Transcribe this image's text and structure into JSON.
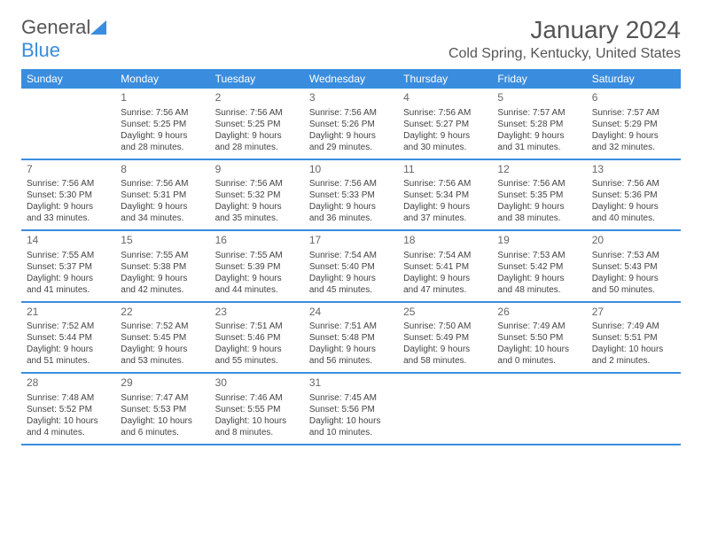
{
  "brand": {
    "part1": "General",
    "part2": "Blue"
  },
  "title": "January 2024",
  "location": "Cold Spring, Kentucky, United States",
  "colors": {
    "accent": "#3a8dde",
    "text": "#444444",
    "title": "#555555",
    "bg": "#ffffff"
  },
  "fonts": {
    "title_size": 28,
    "location_size": 16,
    "header_size": 12,
    "cell_size": 10
  },
  "day_headers": [
    "Sunday",
    "Monday",
    "Tuesday",
    "Wednesday",
    "Thursday",
    "Friday",
    "Saturday"
  ],
  "weeks": [
    [
      null,
      {
        "n": "1",
        "sr": "Sunrise: 7:56 AM",
        "ss": "Sunset: 5:25 PM",
        "d1": "Daylight: 9 hours",
        "d2": "and 28 minutes."
      },
      {
        "n": "2",
        "sr": "Sunrise: 7:56 AM",
        "ss": "Sunset: 5:25 PM",
        "d1": "Daylight: 9 hours",
        "d2": "and 28 minutes."
      },
      {
        "n": "3",
        "sr": "Sunrise: 7:56 AM",
        "ss": "Sunset: 5:26 PM",
        "d1": "Daylight: 9 hours",
        "d2": "and 29 minutes."
      },
      {
        "n": "4",
        "sr": "Sunrise: 7:56 AM",
        "ss": "Sunset: 5:27 PM",
        "d1": "Daylight: 9 hours",
        "d2": "and 30 minutes."
      },
      {
        "n": "5",
        "sr": "Sunrise: 7:57 AM",
        "ss": "Sunset: 5:28 PM",
        "d1": "Daylight: 9 hours",
        "d2": "and 31 minutes."
      },
      {
        "n": "6",
        "sr": "Sunrise: 7:57 AM",
        "ss": "Sunset: 5:29 PM",
        "d1": "Daylight: 9 hours",
        "d2": "and 32 minutes."
      }
    ],
    [
      {
        "n": "7",
        "sr": "Sunrise: 7:56 AM",
        "ss": "Sunset: 5:30 PM",
        "d1": "Daylight: 9 hours",
        "d2": "and 33 minutes."
      },
      {
        "n": "8",
        "sr": "Sunrise: 7:56 AM",
        "ss": "Sunset: 5:31 PM",
        "d1": "Daylight: 9 hours",
        "d2": "and 34 minutes."
      },
      {
        "n": "9",
        "sr": "Sunrise: 7:56 AM",
        "ss": "Sunset: 5:32 PM",
        "d1": "Daylight: 9 hours",
        "d2": "and 35 minutes."
      },
      {
        "n": "10",
        "sr": "Sunrise: 7:56 AM",
        "ss": "Sunset: 5:33 PM",
        "d1": "Daylight: 9 hours",
        "d2": "and 36 minutes."
      },
      {
        "n": "11",
        "sr": "Sunrise: 7:56 AM",
        "ss": "Sunset: 5:34 PM",
        "d1": "Daylight: 9 hours",
        "d2": "and 37 minutes."
      },
      {
        "n": "12",
        "sr": "Sunrise: 7:56 AM",
        "ss": "Sunset: 5:35 PM",
        "d1": "Daylight: 9 hours",
        "d2": "and 38 minutes."
      },
      {
        "n": "13",
        "sr": "Sunrise: 7:56 AM",
        "ss": "Sunset: 5:36 PM",
        "d1": "Daylight: 9 hours",
        "d2": "and 40 minutes."
      }
    ],
    [
      {
        "n": "14",
        "sr": "Sunrise: 7:55 AM",
        "ss": "Sunset: 5:37 PM",
        "d1": "Daylight: 9 hours",
        "d2": "and 41 minutes."
      },
      {
        "n": "15",
        "sr": "Sunrise: 7:55 AM",
        "ss": "Sunset: 5:38 PM",
        "d1": "Daylight: 9 hours",
        "d2": "and 42 minutes."
      },
      {
        "n": "16",
        "sr": "Sunrise: 7:55 AM",
        "ss": "Sunset: 5:39 PM",
        "d1": "Daylight: 9 hours",
        "d2": "and 44 minutes."
      },
      {
        "n": "17",
        "sr": "Sunrise: 7:54 AM",
        "ss": "Sunset: 5:40 PM",
        "d1": "Daylight: 9 hours",
        "d2": "and 45 minutes."
      },
      {
        "n": "18",
        "sr": "Sunrise: 7:54 AM",
        "ss": "Sunset: 5:41 PM",
        "d1": "Daylight: 9 hours",
        "d2": "and 47 minutes."
      },
      {
        "n": "19",
        "sr": "Sunrise: 7:53 AM",
        "ss": "Sunset: 5:42 PM",
        "d1": "Daylight: 9 hours",
        "d2": "and 48 minutes."
      },
      {
        "n": "20",
        "sr": "Sunrise: 7:53 AM",
        "ss": "Sunset: 5:43 PM",
        "d1": "Daylight: 9 hours",
        "d2": "and 50 minutes."
      }
    ],
    [
      {
        "n": "21",
        "sr": "Sunrise: 7:52 AM",
        "ss": "Sunset: 5:44 PM",
        "d1": "Daylight: 9 hours",
        "d2": "and 51 minutes."
      },
      {
        "n": "22",
        "sr": "Sunrise: 7:52 AM",
        "ss": "Sunset: 5:45 PM",
        "d1": "Daylight: 9 hours",
        "d2": "and 53 minutes."
      },
      {
        "n": "23",
        "sr": "Sunrise: 7:51 AM",
        "ss": "Sunset: 5:46 PM",
        "d1": "Daylight: 9 hours",
        "d2": "and 55 minutes."
      },
      {
        "n": "24",
        "sr": "Sunrise: 7:51 AM",
        "ss": "Sunset: 5:48 PM",
        "d1": "Daylight: 9 hours",
        "d2": "and 56 minutes."
      },
      {
        "n": "25",
        "sr": "Sunrise: 7:50 AM",
        "ss": "Sunset: 5:49 PM",
        "d1": "Daylight: 9 hours",
        "d2": "and 58 minutes."
      },
      {
        "n": "26",
        "sr": "Sunrise: 7:49 AM",
        "ss": "Sunset: 5:50 PM",
        "d1": "Daylight: 10 hours",
        "d2": "and 0 minutes."
      },
      {
        "n": "27",
        "sr": "Sunrise: 7:49 AM",
        "ss": "Sunset: 5:51 PM",
        "d1": "Daylight: 10 hours",
        "d2": "and 2 minutes."
      }
    ],
    [
      {
        "n": "28",
        "sr": "Sunrise: 7:48 AM",
        "ss": "Sunset: 5:52 PM",
        "d1": "Daylight: 10 hours",
        "d2": "and 4 minutes."
      },
      {
        "n": "29",
        "sr": "Sunrise: 7:47 AM",
        "ss": "Sunset: 5:53 PM",
        "d1": "Daylight: 10 hours",
        "d2": "and 6 minutes."
      },
      {
        "n": "30",
        "sr": "Sunrise: 7:46 AM",
        "ss": "Sunset: 5:55 PM",
        "d1": "Daylight: 10 hours",
        "d2": "and 8 minutes."
      },
      {
        "n": "31",
        "sr": "Sunrise: 7:45 AM",
        "ss": "Sunset: 5:56 PM",
        "d1": "Daylight: 10 hours",
        "d2": "and 10 minutes."
      },
      null,
      null,
      null
    ]
  ]
}
